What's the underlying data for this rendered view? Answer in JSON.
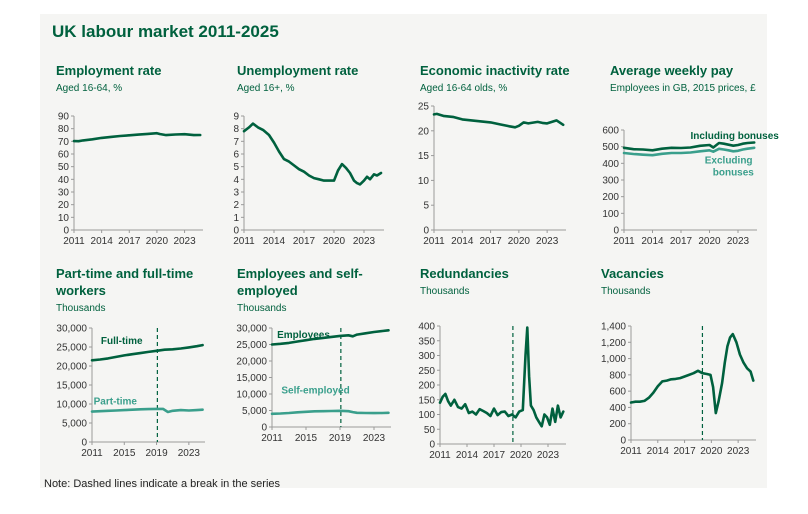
{
  "page": {
    "title": "UK labour market 2011-2025",
    "note": "Note: Dashed lines indicate a break in the series"
  },
  "colors": {
    "dark": "#00613e",
    "light": "#3a9f8c",
    "axis": "#9a9a9a",
    "text": "#333333"
  },
  "chart_data": [
    {
      "id": "emp",
      "type": "line",
      "title": [
        "Employment rate"
      ],
      "subtitle": "Aged 16-64, %",
      "xlim": [
        2011,
        2025
      ],
      "ylim": [
        0,
        90
      ],
      "xticks": [
        2011,
        2014,
        2017,
        2020,
        2023
      ],
      "yticks": [
        0,
        10,
        20,
        30,
        40,
        50,
        60,
        70,
        80,
        90
      ],
      "break_x": null,
      "series": [
        {
          "color": "dark",
          "label": null,
          "x": [
            2011,
            2011.5,
            2012,
            2013,
            2014,
            2015,
            2016,
            2017,
            2018,
            2019,
            2020,
            2020.3,
            2021,
            2022,
            2023,
            2024,
            2024.7
          ],
          "y": [
            70.2,
            70.1,
            70.7,
            71.6,
            72.7,
            73.5,
            74.2,
            74.8,
            75.3,
            75.9,
            76.4,
            75.8,
            74.9,
            75.4,
            75.6,
            74.9,
            75.0
          ]
        }
      ]
    },
    {
      "id": "unemp",
      "type": "line",
      "title": [
        "Unemployment rate"
      ],
      "subtitle": "Aged 16+, %",
      "xlim": [
        2011,
        2025
      ],
      "ylim": [
        0,
        9
      ],
      "xticks": [
        2011,
        2014,
        2017,
        2020,
        2023
      ],
      "yticks": [
        0,
        1,
        2,
        3,
        4,
        5,
        6,
        7,
        8,
        9
      ],
      "break_x": null,
      "series": [
        {
          "color": "dark",
          "label": null,
          "x": [
            2011,
            2011.5,
            2011.9,
            2012.4,
            2012.9,
            2013.5,
            2014,
            2014.5,
            2015,
            2015.5,
            2016,
            2016.5,
            2017,
            2017.5,
            2018,
            2018.5,
            2019,
            2019.5,
            2020,
            2020.4,
            2020.8,
            2021.2,
            2021.6,
            2022,
            2022.3,
            2022.6,
            2023,
            2023.3,
            2023.6,
            2024,
            2024.3,
            2024.7
          ],
          "y": [
            7.8,
            8.1,
            8.4,
            8.1,
            7.9,
            7.5,
            6.9,
            6.2,
            5.6,
            5.4,
            5.1,
            4.8,
            4.6,
            4.3,
            4.1,
            4.0,
            3.9,
            3.9,
            3.9,
            4.7,
            5.2,
            4.9,
            4.5,
            3.9,
            3.7,
            3.6,
            3.9,
            4.2,
            4.0,
            4.4,
            4.3,
            4.5
          ]
        }
      ]
    },
    {
      "id": "inact",
      "type": "line",
      "title": [
        "Economic inactivity rate"
      ],
      "subtitle": "Aged 16-64 olds, %",
      "xlim": [
        2011,
        2025
      ],
      "ylim": [
        0,
        25
      ],
      "xticks": [
        2011,
        2014,
        2017,
        2020,
        2023
      ],
      "yticks": [
        0,
        5,
        10,
        15,
        20,
        25
      ],
      "break_x": null,
      "series": [
        {
          "color": "dark",
          "label": null,
          "x": [
            2011,
            2011.3,
            2012,
            2013,
            2014,
            2015,
            2016,
            2017,
            2018,
            2019,
            2019.6,
            2020,
            2020.5,
            2021,
            2022,
            2022.5,
            2023,
            2024,
            2024.7
          ],
          "y": [
            23.3,
            23.4,
            23.0,
            22.8,
            22.3,
            22.1,
            21.9,
            21.7,
            21.3,
            20.9,
            20.7,
            21.0,
            21.7,
            21.5,
            21.8,
            21.6,
            21.5,
            22.1,
            21.2
          ]
        }
      ]
    },
    {
      "id": "pay",
      "type": "line",
      "title": [
        "Average weekly pay"
      ],
      "subtitle": "Employees in GB, 2015 prices, £",
      "xlim": [
        2011,
        2025
      ],
      "ylim": [
        0,
        600
      ],
      "xticks": [
        2011,
        2014,
        2017,
        2020,
        2023
      ],
      "yticks": [
        0,
        100,
        200,
        300,
        400,
        500,
        600
      ],
      "break_x": null,
      "series": [
        {
          "color": "dark",
          "label": "Including bonuses",
          "x": [
            2011,
            2012,
            2013,
            2014,
            2015,
            2016,
            2017,
            2018,
            2019,
            2020,
            2020.4,
            2021,
            2021.5,
            2022,
            2022.5,
            2023,
            2023.5,
            2024,
            2024.7
          ],
          "y": [
            493,
            485,
            483,
            478,
            488,
            493,
            492,
            495,
            505,
            510,
            495,
            522,
            518,
            512,
            506,
            510,
            518,
            522,
            525
          ]
        },
        {
          "color": "light",
          "label": "Excluding bonuses",
          "x": [
            2011,
            2012,
            2013,
            2014,
            2015,
            2016,
            2017,
            2018,
            2019,
            2020,
            2020.4,
            2021,
            2021.5,
            2022,
            2022.5,
            2023,
            2023.5,
            2024,
            2024.7
          ],
          "y": [
            462,
            456,
            452,
            449,
            457,
            462,
            462,
            465,
            472,
            478,
            470,
            487,
            483,
            478,
            472,
            475,
            483,
            488,
            493
          ]
        }
      ]
    },
    {
      "id": "ptft",
      "type": "line",
      "title": [
        "Part-time and full-time",
        "workers"
      ],
      "subtitle": "Thousands",
      "xlim": [
        2011,
        2025
      ],
      "ylim": [
        0,
        30000
      ],
      "xticks": [
        2011,
        2015,
        2019,
        2023
      ],
      "yticks": [
        0,
        5000,
        10000,
        15000,
        20000,
        25000,
        30000
      ],
      "break_x": 2019.1,
      "series": [
        {
          "color": "dark",
          "label": "Full-time",
          "x": [
            2011,
            2012,
            2013,
            2014,
            2015,
            2016,
            2017,
            2018,
            2019,
            2020,
            2021,
            2022,
            2023,
            2024,
            2024.7
          ],
          "y": [
            21500,
            21700,
            22000,
            22400,
            22800,
            23100,
            23400,
            23700,
            24000,
            24300,
            24400,
            24600,
            24900,
            25200,
            25500
          ]
        },
        {
          "color": "light",
          "label": "Part-time",
          "x": [
            2011,
            2012,
            2013,
            2014,
            2015,
            2016,
            2017,
            2018,
            2019,
            2019.8,
            2020.4,
            2021,
            2022,
            2023,
            2024,
            2024.7
          ],
          "y": [
            8000,
            8100,
            8200,
            8300,
            8400,
            8500,
            8600,
            8650,
            8700,
            8700,
            7900,
            8200,
            8400,
            8300,
            8400,
            8500
          ]
        }
      ]
    },
    {
      "id": "empself",
      "type": "line",
      "title": [
        "Employees and self-",
        "employed"
      ],
      "subtitle": "Thousands",
      "xlim": [
        2011,
        2025
      ],
      "ylim": [
        0,
        30000
      ],
      "xticks": [
        2011,
        2015,
        2019,
        2023
      ],
      "yticks": [
        0,
        5000,
        10000,
        15000,
        20000,
        25000,
        30000
      ],
      "break_x": 2019.1,
      "series": [
        {
          "color": "dark",
          "label": "Employees",
          "x": [
            2011,
            2012,
            2013,
            2014,
            2015,
            2016,
            2017,
            2018,
            2019,
            2020,
            2020.5,
            2021,
            2022,
            2023,
            2024,
            2024.7
          ],
          "y": [
            25000,
            25200,
            25500,
            25900,
            26300,
            26700,
            27000,
            27300,
            27600,
            27800,
            27500,
            28000,
            28400,
            28800,
            29100,
            29300
          ]
        },
        {
          "color": "light",
          "label": "Self-employed",
          "x": [
            2011,
            2012,
            2013,
            2014,
            2015,
            2016,
            2017,
            2018,
            2019,
            2020,
            2020.5,
            2021,
            2022,
            2023,
            2024,
            2024.7
          ],
          "y": [
            4000,
            4100,
            4250,
            4450,
            4600,
            4750,
            4800,
            4850,
            4900,
            4800,
            4500,
            4300,
            4250,
            4200,
            4250,
            4300
          ]
        }
      ]
    },
    {
      "id": "redund",
      "type": "line",
      "title": [
        "Redundancies"
      ],
      "subtitle": "Thousands",
      "xlim": [
        2011,
        2025
      ],
      "ylim": [
        0,
        400
      ],
      "xticks": [
        2011,
        2014,
        2017,
        2020,
        2023
      ],
      "yticks": [
        0,
        50,
        100,
        150,
        200,
        250,
        300,
        350,
        400
      ],
      "break_x": 2019.1,
      "series": [
        {
          "color": "dark",
          "label": null,
          "x": [
            2011,
            2011.3,
            2011.6,
            2011.9,
            2012.2,
            2012.6,
            2013,
            2013.4,
            2013.8,
            2014.2,
            2014.6,
            2015,
            2015.4,
            2015.8,
            2016.2,
            2016.6,
            2017,
            2017.4,
            2017.8,
            2018.2,
            2018.6,
            2019,
            2019.4,
            2019.8,
            2020.2,
            2020.5,
            2020.7,
            2020.9,
            2021.1,
            2021.4,
            2021.7,
            2022,
            2022.3,
            2022.6,
            2022.9,
            2023.2,
            2023.5,
            2023.8,
            2024.1,
            2024.4,
            2024.7
          ],
          "y": [
            140,
            160,
            170,
            145,
            130,
            150,
            125,
            120,
            135,
            105,
            110,
            100,
            118,
            112,
            105,
            95,
            120,
            98,
            108,
            110,
            95,
            100,
            90,
            110,
            115,
            300,
            395,
            230,
            130,
            115,
            90,
            75,
            60,
            100,
            90,
            65,
            120,
            75,
            130,
            90,
            110
          ]
        }
      ]
    },
    {
      "id": "vac",
      "type": "line",
      "title": [
        "Vacancies"
      ],
      "subtitle": "Thousands",
      "xlim": [
        2011,
        2025
      ],
      "ylim": [
        0,
        1400
      ],
      "xticks": [
        2011,
        2014,
        2017,
        2020,
        2023
      ],
      "yticks": [
        0,
        200,
        400,
        600,
        800,
        1000,
        1200,
        1400
      ],
      "break_x": 2019.0,
      "series": [
        {
          "color": "dark",
          "label": null,
          "x": [
            2011,
            2011.5,
            2012,
            2012.5,
            2013,
            2013.5,
            2014,
            2014.5,
            2015,
            2015.5,
            2016,
            2016.5,
            2017,
            2017.5,
            2018,
            2018.5,
            2019,
            2019.5,
            2019.9,
            2020.2,
            2020.5,
            2020.8,
            2021.2,
            2021.5,
            2021.8,
            2022.1,
            2022.4,
            2022.8,
            2023.2,
            2023.6,
            2024,
            2024.4,
            2024.7
          ],
          "y": [
            460,
            470,
            470,
            480,
            520,
            580,
            660,
            720,
            730,
            745,
            750,
            760,
            780,
            800,
            820,
            850,
            820,
            810,
            800,
            650,
            330,
            470,
            700,
            950,
            1150,
            1260,
            1300,
            1200,
            1050,
            950,
            880,
            840,
            730
          ]
        }
      ]
    }
  ]
}
